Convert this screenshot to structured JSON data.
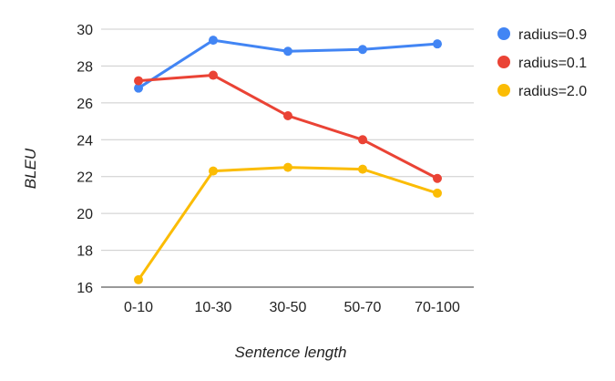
{
  "chart_data": {
    "type": "line",
    "title": "",
    "xlabel": "Sentence length",
    "ylabel": "BLEU",
    "categories": [
      "0-10",
      "10-30",
      "30-50",
      "50-70",
      "70-100"
    ],
    "ylim": [
      16,
      30
    ],
    "yticks": [
      16,
      18,
      20,
      22,
      24,
      26,
      28,
      30
    ],
    "grid": true,
    "legend_position": "right",
    "series": [
      {
        "name": "radius=0.9",
        "color": "#4285F4",
        "values": [
          26.8,
          29.4,
          28.8,
          28.9,
          29.2
        ]
      },
      {
        "name": "radius=0.1",
        "color": "#EA4335",
        "values": [
          27.2,
          27.5,
          25.3,
          24.0,
          21.9
        ]
      },
      {
        "name": "radius=2.0",
        "color": "#FBBC04",
        "values": [
          16.4,
          22.3,
          22.5,
          22.4,
          21.1
        ]
      }
    ]
  }
}
